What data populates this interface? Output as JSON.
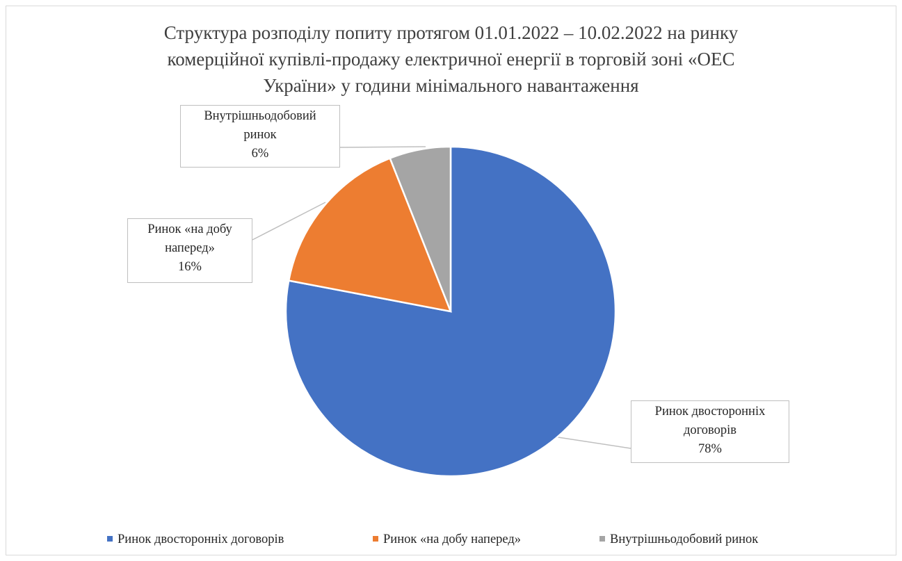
{
  "chart_data": {
    "type": "pie",
    "title_lines": [
      "Структура розподілу попиту протягом 01.01.2022  – 10.02.2022  на ринку",
      "комерційної купівлі-продажу електричної енергії в торговій зоні «ОЕС",
      "України» у години мінімального  навантаження"
    ],
    "categories": [
      "Ринок двосторонніх договорів",
      "Ринок «на добу наперед»",
      "Внутрішньодобовий ринок"
    ],
    "values": [
      78,
      16,
      6
    ],
    "data_labels": [
      {
        "lines": [
          "Ринок двосторонніх",
          "договорів"
        ],
        "percent": "78%"
      },
      {
        "lines": [
          "Ринок «на добу",
          "наперед»"
        ],
        "percent": "16%"
      },
      {
        "lines": [
          "Внутрішньодобовий",
          "ринок"
        ],
        "percent": "6%"
      }
    ],
    "colors": [
      "#4472c4",
      "#ed7d31",
      "#a5a5a5"
    ],
    "legend_position": "bottom"
  }
}
